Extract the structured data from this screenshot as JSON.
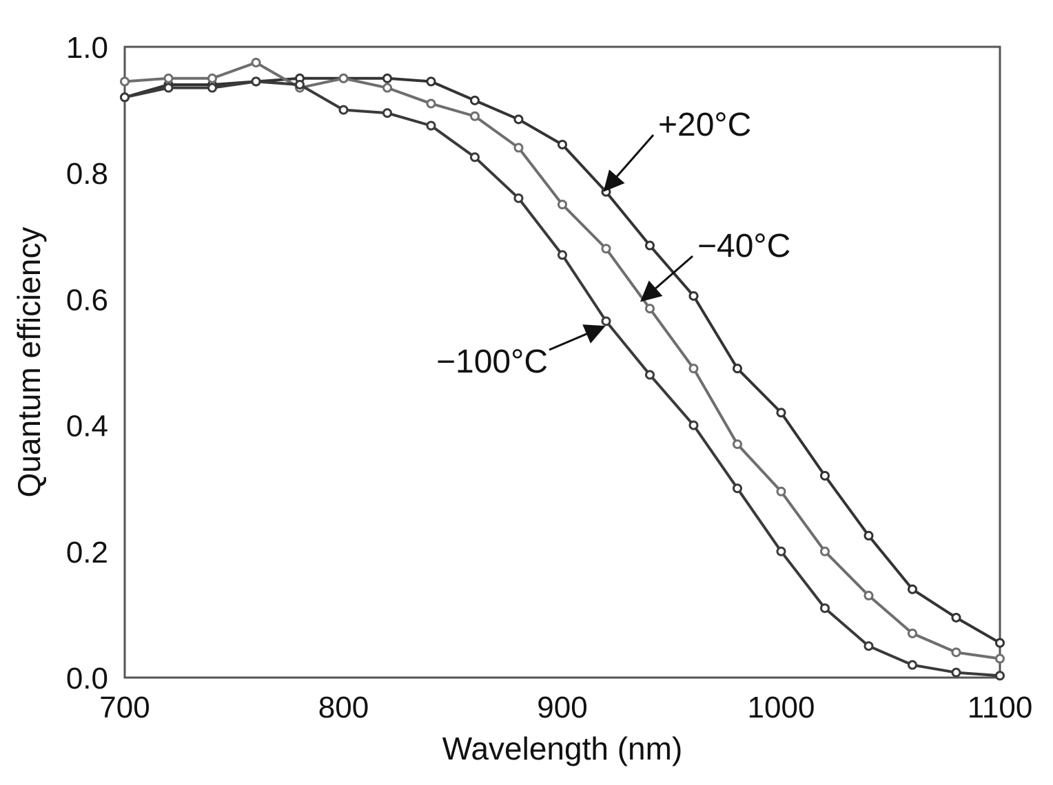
{
  "chart_data": {
    "type": "line",
    "xlabel": "Wavelength (nm)",
    "ylabel": "Quantum efficiency",
    "xlim": [
      700,
      1100
    ],
    "ylim": [
      0.0,
      1.0
    ],
    "xticks": [
      700,
      800,
      900,
      1000,
      1100
    ],
    "xtick_labels": [
      "700",
      "800",
      "900",
      "1000",
      "1100"
    ],
    "yticks": [
      0.0,
      0.2,
      0.4,
      0.6,
      0.8,
      1.0
    ],
    "ytick_labels": [
      "0.0",
      "0.2",
      "0.4",
      "0.6",
      "0.8",
      "1.0"
    ],
    "grid": false,
    "x": [
      700,
      720,
      740,
      760,
      780,
      800,
      820,
      840,
      860,
      880,
      900,
      920,
      940,
      960,
      980,
      1000,
      1020,
      1040,
      1060,
      1080,
      1100
    ],
    "series": [
      {
        "name": "+20°C",
        "color": "#333333",
        "values": [
          0.92,
          0.94,
          0.94,
          0.945,
          0.95,
          0.95,
          0.95,
          0.945,
          0.915,
          0.885,
          0.845,
          0.77,
          0.685,
          0.605,
          0.49,
          0.42,
          0.32,
          0.225,
          0.14,
          0.095,
          0.055
        ]
      },
      {
        "name": "−40°C",
        "color": "#6e6e6e",
        "values": [
          0.945,
          0.95,
          0.95,
          0.975,
          0.935,
          0.95,
          0.935,
          0.91,
          0.89,
          0.84,
          0.75,
          0.68,
          0.585,
          0.49,
          0.37,
          0.295,
          0.2,
          0.13,
          0.07,
          0.04,
          0.03
        ]
      },
      {
        "name": "−100°C",
        "color": "#3a3a3a",
        "values": [
          0.92,
          0.935,
          0.935,
          0.945,
          0.94,
          0.9,
          0.895,
          0.875,
          0.825,
          0.76,
          0.67,
          0.565,
          0.48,
          0.4,
          0.3,
          0.2,
          0.11,
          0.05,
          0.02,
          0.008,
          0.003
        ]
      }
    ],
    "annotations": [
      {
        "text": "+20°C",
        "target_x": 920,
        "target_y": 0.775
      },
      {
        "text": "−40°C",
        "target_x": 937,
        "target_y": 0.6
      },
      {
        "text": "−100°C",
        "target_x": 918,
        "target_y": 0.555
      }
    ]
  }
}
